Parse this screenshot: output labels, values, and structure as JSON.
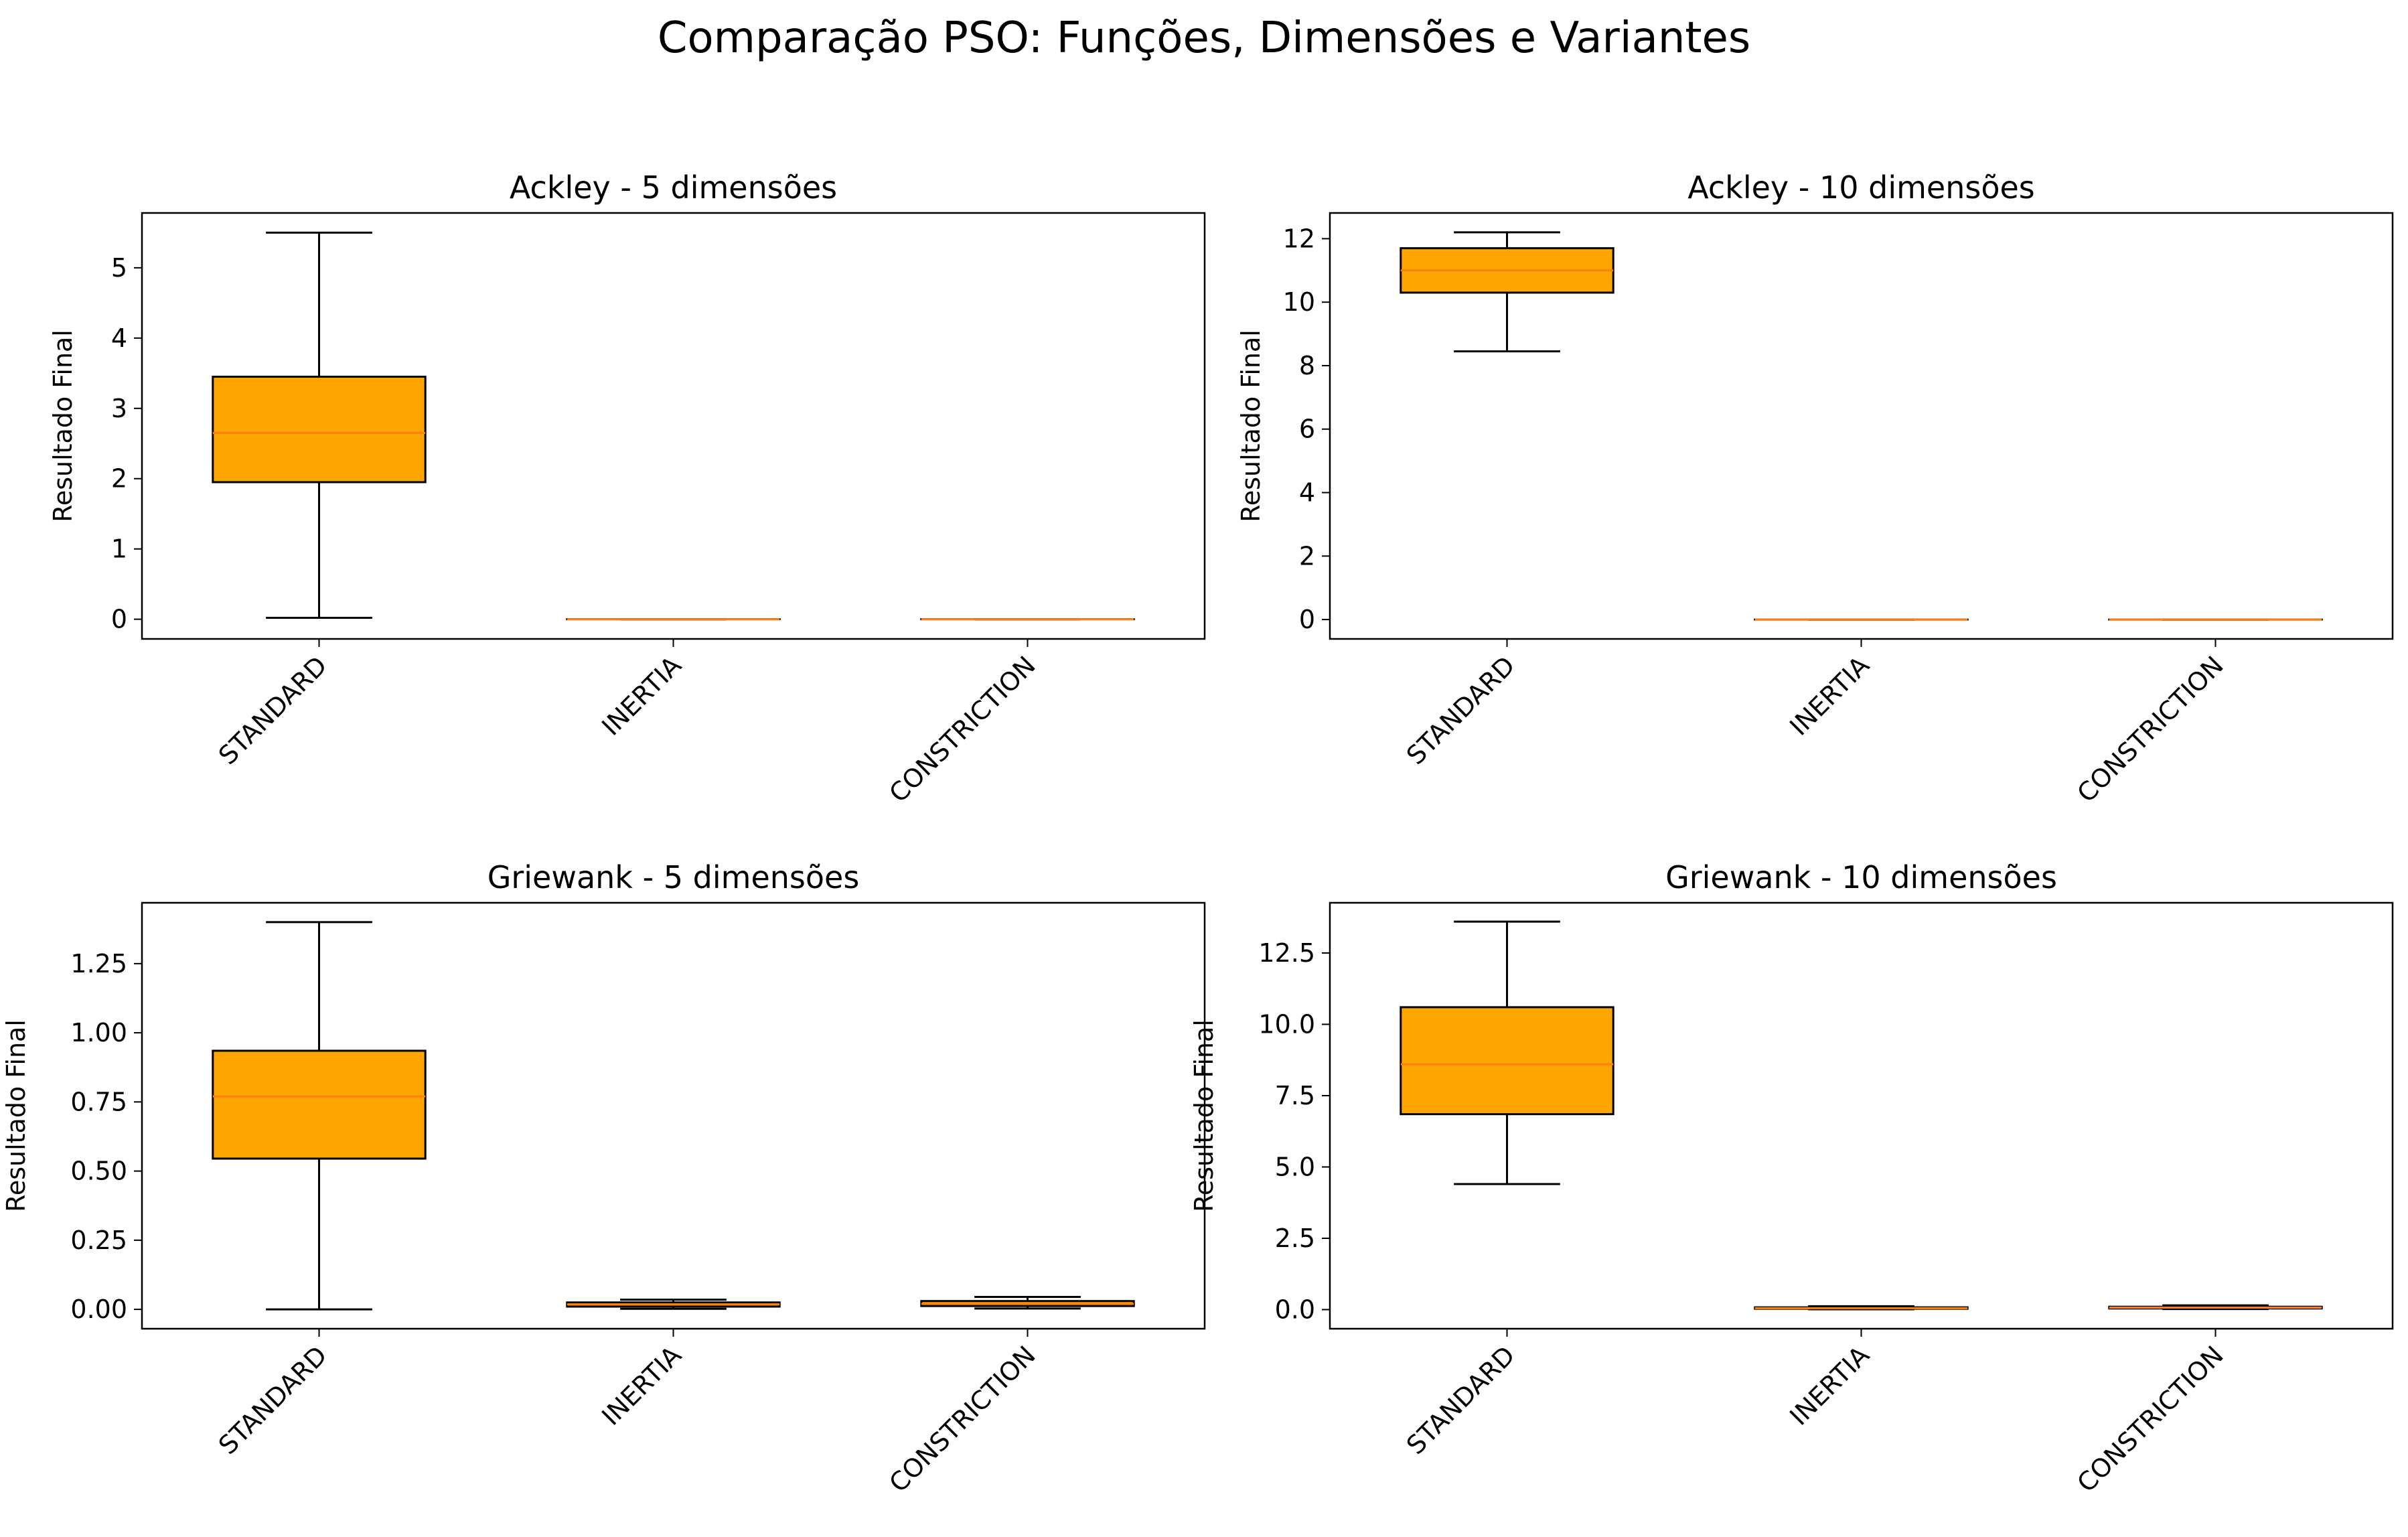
{
  "suptitle": "Comparação PSO: Funções, Dimensões e Variantes",
  "colors": {
    "box_fill": "#FFA500",
    "median": "#FF7F0E",
    "edge": "#000000"
  },
  "chart_data": [
    {
      "type": "box",
      "title": "Ackley - 5 dimensões",
      "ylabel": "Resultado Final",
      "xlabel": "",
      "categories": [
        "STANDARD",
        "INERTIA",
        "CONSTRICTION"
      ],
      "yticks": [
        0,
        1,
        2,
        3,
        4,
        5
      ],
      "yticklabels": [
        "0",
        "1",
        "2",
        "3",
        "4",
        "5"
      ],
      "ylim": [
        -0.28,
        5.78
      ],
      "boxes": [
        {
          "whislo": 0.02,
          "q1": 1.95,
          "med": 2.65,
          "q3": 3.45,
          "whishi": 5.5
        },
        {
          "whislo": 0.0,
          "q1": 0.0,
          "med": 0.0,
          "q3": 0.0,
          "whishi": 0.0
        },
        {
          "whislo": 0.0,
          "q1": 0.0,
          "med": 0.0,
          "q3": 0.0,
          "whishi": 0.0
        }
      ]
    },
    {
      "type": "box",
      "title": "Ackley - 10 dimensões",
      "ylabel": "Resultado Final",
      "xlabel": "",
      "categories": [
        "STANDARD",
        "INERTIA",
        "CONSTRICTION"
      ],
      "yticks": [
        0,
        2,
        4,
        6,
        8,
        10,
        12
      ],
      "yticklabels": [
        "0",
        "2",
        "4",
        "6",
        "8",
        "10",
        "12"
      ],
      "ylim": [
        -0.61,
        12.81
      ],
      "boxes": [
        {
          "whislo": 8.45,
          "q1": 10.3,
          "med": 11.0,
          "q3": 11.7,
          "whishi": 12.2
        },
        {
          "whislo": 0.0,
          "q1": 0.0,
          "med": 0.0,
          "q3": 0.0,
          "whishi": 0.0
        },
        {
          "whislo": 0.0,
          "q1": 0.0,
          "med": 0.0,
          "q3": 0.0,
          "whishi": 0.0
        }
      ]
    },
    {
      "type": "box",
      "title": "Griewank - 5 dimensões",
      "ylabel": "Resultado Final",
      "xlabel": "",
      "categories": [
        "STANDARD",
        "INERTIA",
        "CONSTRICTION"
      ],
      "yticks": [
        0,
        0.25,
        0.5,
        0.75,
        1.0,
        1.25
      ],
      "yticklabels": [
        "0.00",
        "0.25",
        "0.50",
        "0.75",
        "1.00",
        "1.25"
      ],
      "ylim": [
        -0.07,
        1.47
      ],
      "boxes": [
        {
          "whislo": 0.0,
          "q1": 0.545,
          "med": 0.77,
          "q3": 0.935,
          "whishi": 1.4
        },
        {
          "whislo": 0.002,
          "q1": 0.01,
          "med": 0.018,
          "q3": 0.025,
          "whishi": 0.035
        },
        {
          "whislo": 0.003,
          "q1": 0.012,
          "med": 0.02,
          "q3": 0.03,
          "whishi": 0.045
        }
      ]
    },
    {
      "type": "box",
      "title": "Griewank - 10 dimensões",
      "ylabel": "Resultado Final",
      "xlabel": "",
      "categories": [
        "STANDARD",
        "INERTIA",
        "CONSTRICTION"
      ],
      "yticks": [
        0,
        2.5,
        5,
        7.5,
        10,
        12.5
      ],
      "yticklabels": [
        "0.0",
        "2.5",
        "5.0",
        "7.5",
        "10.0",
        "12.5"
      ],
      "ylim": [
        -0.67,
        14.26
      ],
      "boxes": [
        {
          "whislo": 4.4,
          "q1": 6.85,
          "med": 8.6,
          "q3": 10.6,
          "whishi": 13.6
        },
        {
          "whislo": 0.01,
          "q1": 0.03,
          "med": 0.05,
          "q3": 0.08,
          "whishi": 0.12
        },
        {
          "whislo": 0.02,
          "q1": 0.04,
          "med": 0.07,
          "q3": 0.1,
          "whishi": 0.15
        }
      ]
    }
  ]
}
